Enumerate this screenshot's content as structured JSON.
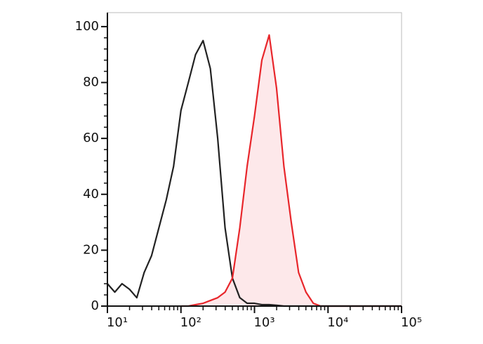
{
  "chart_data": {
    "type": "line",
    "xscale": "log",
    "x": [
      10,
      12.6,
      15.8,
      20,
      25.1,
      31.6,
      39.8,
      50.1,
      63.1,
      79.4,
      100,
      126,
      158,
      200,
      251,
      316,
      398,
      501,
      631,
      794,
      1000,
      1259,
      1585,
      1995,
      2512,
      3162,
      3981,
      5012,
      6310,
      7943,
      10000,
      12589,
      15849,
      19953,
      25119,
      31623,
      39811,
      50119,
      63096,
      79433,
      100000
    ],
    "series": [
      {
        "color": "#222222",
        "values": [
          8,
          5,
          8,
          6,
          3,
          12,
          18,
          28,
          38,
          50,
          70,
          80,
          90,
          95,
          85,
          60,
          28,
          10,
          3,
          1,
          1,
          0.5,
          0.5,
          0.3,
          0,
          0,
          0,
          0,
          0,
          0,
          0,
          0,
          0,
          0,
          0,
          0,
          0,
          0,
          0,
          0,
          0
        ]
      },
      {
        "color": "#e8262b",
        "fill": "#fde8ea",
        "values": [
          null,
          null,
          null,
          null,
          null,
          null,
          null,
          null,
          null,
          null,
          0,
          0,
          0.5,
          1,
          2,
          3,
          5,
          10,
          28,
          50,
          68,
          88,
          97,
          78,
          50,
          30,
          12,
          5,
          1,
          0,
          0,
          0,
          0,
          0,
          0,
          0,
          0,
          0,
          0,
          0,
          0
        ]
      }
    ],
    "xlim": [
      10,
      100000
    ],
    "xticks": [
      {
        "value": 10,
        "label": "10¹"
      },
      {
        "value": 100,
        "label": "10²"
      },
      {
        "value": 1000,
        "label": "10³"
      },
      {
        "value": 10000,
        "label": "10⁴"
      },
      {
        "value": 100000,
        "label": "10⁵"
      }
    ],
    "ylim": [
      0,
      105
    ],
    "yticks": [
      0,
      20,
      40,
      60,
      80,
      100
    ]
  }
}
